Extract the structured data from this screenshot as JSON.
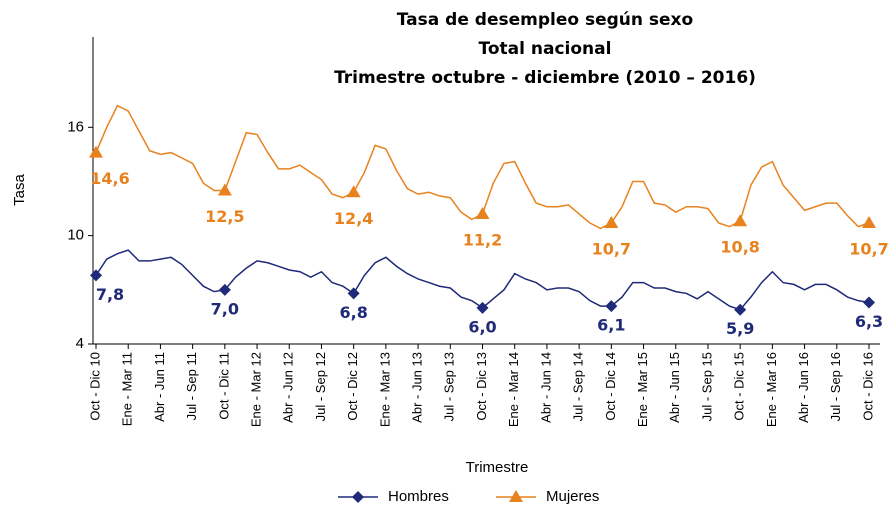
{
  "chart_data": {
    "type": "line",
    "title": [
      "Tasa de desempleo según sexo",
      "Total nacional",
      "Trimestre octubre - diciembre (2010 – 2016)"
    ],
    "x_label": "Trimestre",
    "y_label": "Tasa",
    "categories": [
      "Oct - Dic 10",
      null,
      null,
      "Ene - Mar 11",
      null,
      null,
      "Abr - Jun 11",
      null,
      null,
      "Jul - Sep 11",
      null,
      null,
      "Oct - Dic 11",
      null,
      null,
      "Ene - Mar 12",
      null,
      null,
      "Abr - Jun 12",
      null,
      null,
      "Jul - Sep 12",
      null,
      null,
      "Oct - Dic 12",
      null,
      null,
      "Ene - Mar 13",
      null,
      null,
      "Abr - Jun 13",
      null,
      null,
      "Jul - Sep 13",
      null,
      null,
      "Oct - Dic 13",
      null,
      null,
      "Ene - Mar 14",
      null,
      null,
      "Abr - Jun 14",
      null,
      null,
      "Jul - Sep 14",
      null,
      null,
      "Oct - Dic 14",
      null,
      null,
      "Ene - Mar 15",
      null,
      null,
      "Abr - Jun 15",
      null,
      null,
      "Jul - Sep 15",
      null,
      null,
      "Oct - Dic 15",
      null,
      null,
      "Ene - Mar 16",
      null,
      null,
      "Abr - Jun 16",
      null,
      null,
      "Jul - Sep 16",
      null,
      null,
      "Oct - Dic 16"
    ],
    "ylim": [
      4,
      21
    ],
    "yticks": [
      4,
      10,
      16
    ],
    "series": [
      {
        "name": "Hombres",
        "color": "#1f2a78",
        "marker": "diamond",
        "values": [
          7.8,
          8.7,
          9.0,
          9.2,
          8.6,
          8.6,
          8.7,
          8.8,
          8.4,
          7.8,
          7.2,
          6.9,
          7.0,
          7.7,
          8.2,
          8.6,
          8.5,
          8.3,
          8.1,
          8.0,
          7.7,
          8.0,
          7.4,
          7.2,
          6.8,
          7.8,
          8.5,
          8.8,
          8.3,
          7.9,
          7.6,
          7.4,
          7.2,
          7.1,
          6.6,
          6.4,
          6.0,
          6.5,
          7.0,
          7.9,
          7.6,
          7.4,
          7.0,
          7.1,
          7.1,
          6.9,
          6.4,
          6.1,
          6.1,
          6.6,
          7.4,
          7.4,
          7.1,
          7.1,
          6.9,
          6.8,
          6.5,
          6.9,
          6.5,
          6.1,
          5.9,
          6.6,
          7.4,
          8.0,
          7.4,
          7.3,
          7.0,
          7.3,
          7.3,
          7.0,
          6.6,
          6.4,
          6.3
        ],
        "value_labels": [
          "7,8",
          null,
          null,
          null,
          null,
          null,
          null,
          null,
          null,
          null,
          null,
          null,
          "7,0",
          null,
          null,
          null,
          null,
          null,
          null,
          null,
          null,
          null,
          null,
          null,
          "6,8",
          null,
          null,
          null,
          null,
          null,
          null,
          null,
          null,
          null,
          null,
          null,
          "6,0",
          null,
          null,
          null,
          null,
          null,
          null,
          null,
          null,
          null,
          null,
          null,
          "6,1",
          null,
          null,
          null,
          null,
          null,
          null,
          null,
          null,
          null,
          null,
          null,
          "5,9",
          null,
          null,
          null,
          null,
          null,
          null,
          null,
          null,
          null,
          null,
          null,
          "6,3"
        ]
      },
      {
        "name": "Mujeres",
        "color": "#e8821e",
        "marker": "triangle",
        "values": [
          14.6,
          16.0,
          17.2,
          16.9,
          15.8,
          14.7,
          14.5,
          14.6,
          14.3,
          14.0,
          12.9,
          12.5,
          12.5,
          14.1,
          15.7,
          15.6,
          14.6,
          13.7,
          13.7,
          13.9,
          13.5,
          13.1,
          12.3,
          12.1,
          12.4,
          13.5,
          15.0,
          14.8,
          13.6,
          12.6,
          12.3,
          12.4,
          12.2,
          12.1,
          11.3,
          10.9,
          11.2,
          12.9,
          14.0,
          14.1,
          12.9,
          11.8,
          11.6,
          11.6,
          11.7,
          11.2,
          10.7,
          10.4,
          10.7,
          11.6,
          13.0,
          13.0,
          11.8,
          11.7,
          11.3,
          11.6,
          11.6,
          11.5,
          10.7,
          10.5,
          10.8,
          12.8,
          13.8,
          14.1,
          12.8,
          12.1,
          11.4,
          11.6,
          11.8,
          11.8,
          11.1,
          10.5,
          10.7
        ],
        "value_labels": [
          "14,6",
          null,
          null,
          null,
          null,
          null,
          null,
          null,
          null,
          null,
          null,
          null,
          "12,5",
          null,
          null,
          null,
          null,
          null,
          null,
          null,
          null,
          null,
          null,
          null,
          "12,4",
          null,
          null,
          null,
          null,
          null,
          null,
          null,
          null,
          null,
          null,
          null,
          "11,2",
          null,
          null,
          null,
          null,
          null,
          null,
          null,
          null,
          null,
          null,
          null,
          "10,7",
          null,
          null,
          null,
          null,
          null,
          null,
          null,
          null,
          null,
          null,
          null,
          "10,8",
          null,
          null,
          null,
          null,
          null,
          null,
          null,
          null,
          null,
          null,
          null,
          "10,7"
        ]
      }
    ]
  }
}
